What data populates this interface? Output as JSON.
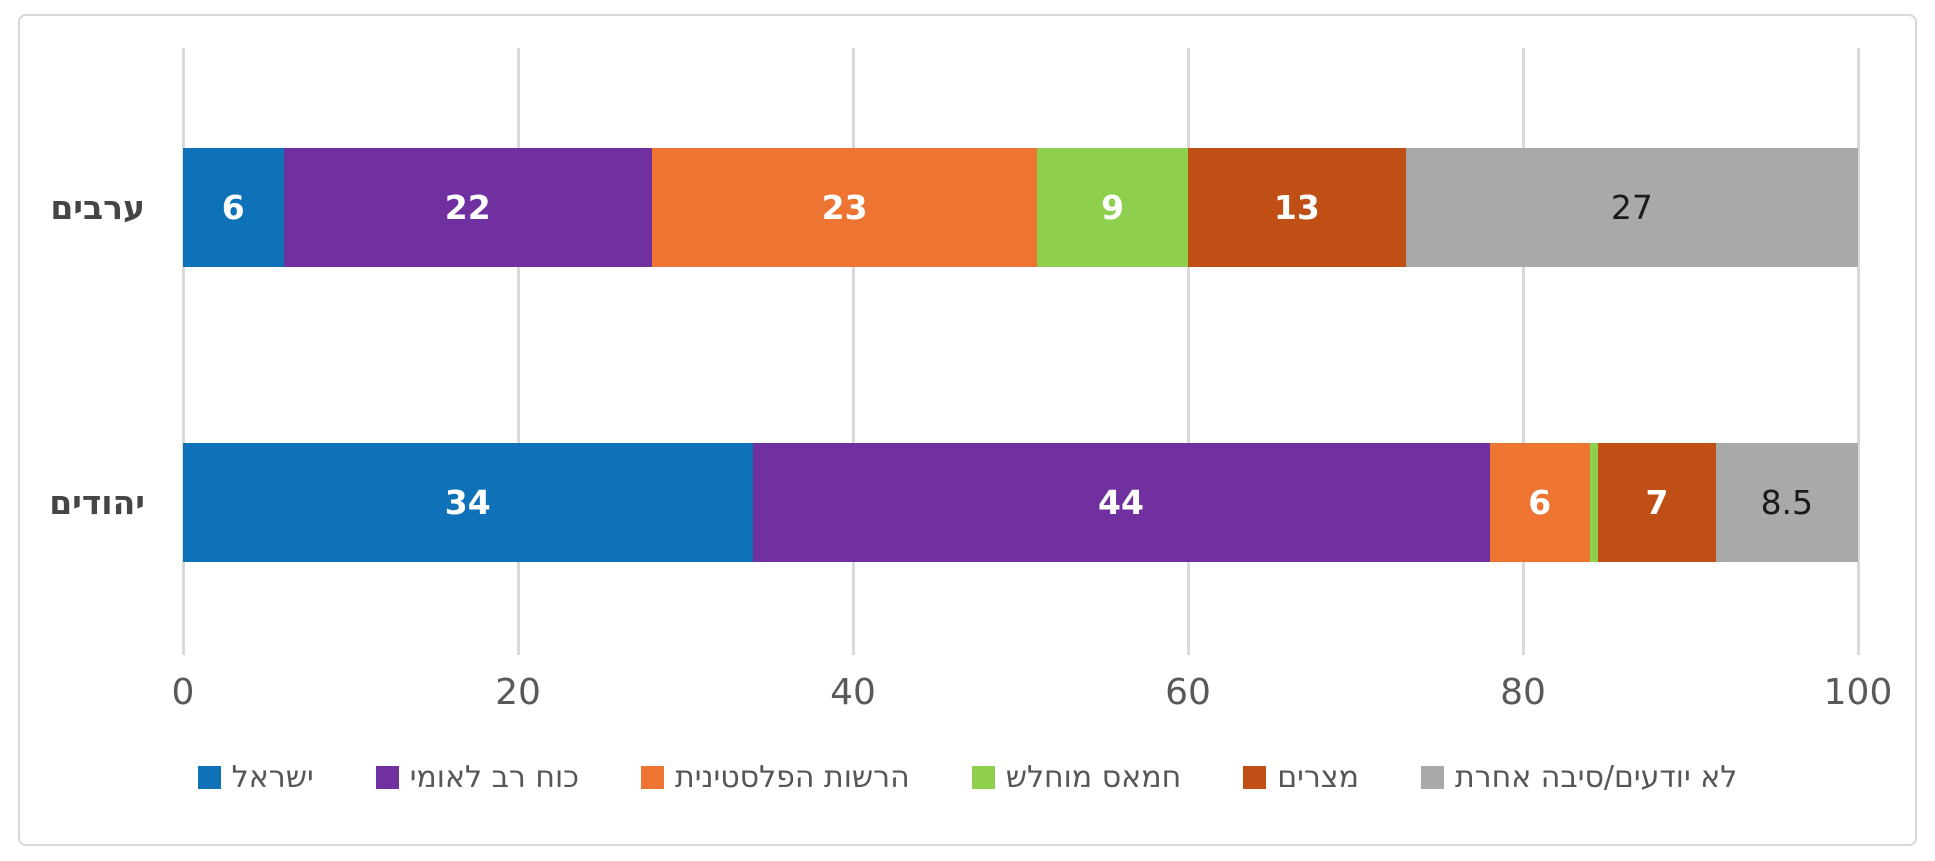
{
  "chart_data": {
    "type": "bar",
    "subtype": "horizontal-stacked",
    "title": "",
    "xlabel": "",
    "ylabel": "",
    "xlim": [
      0,
      100
    ],
    "x_ticks": [
      "0",
      "20",
      "40",
      "60",
      "80",
      "100"
    ],
    "grid": "vertical",
    "legend_position": "bottom-center",
    "categories": [
      "ערבים",
      "יהודים"
    ],
    "series": [
      {
        "name": "ישראל",
        "color": "#0f72b9",
        "values": [
          6,
          34
        ],
        "labels": [
          "6",
          "34"
        ],
        "label_style": "light"
      },
      {
        "name": "כוח רב לאומי",
        "color": "#7030a0",
        "values": [
          22,
          44
        ],
        "labels": [
          "22",
          "44"
        ],
        "label_style": "light"
      },
      {
        "name": "הרשות הפלסטינית",
        "color": "#ed7431",
        "values": [
          23,
          6
        ],
        "labels": [
          "23",
          "6"
        ],
        "label_style": "light"
      },
      {
        "name": "חמאס מוחלש",
        "color": "#8ed04e",
        "values": [
          9,
          0.5
        ],
        "labels": [
          "9",
          ""
        ],
        "label_style": "light"
      },
      {
        "name": "מצרים",
        "color": "#c04f16",
        "values": [
          13,
          7
        ],
        "labels": [
          "13",
          "7"
        ],
        "label_style": "light"
      },
      {
        "name": "לא יודעים/סיבה אחרת",
        "color": "#a9a9a9",
        "values": [
          27,
          8.5
        ],
        "labels": [
          "27",
          "8.5"
        ],
        "label_style": "dark"
      }
    ],
    "colors": {
      "gridline": "#d9d9d9",
      "frame_border": "#d8d8d8",
      "axis_text": "#595959",
      "category_text": "#454545",
      "legend_text": "#565656",
      "value_text_light": "#ffffff",
      "value_text_dark": "#1a1a1a"
    }
  }
}
